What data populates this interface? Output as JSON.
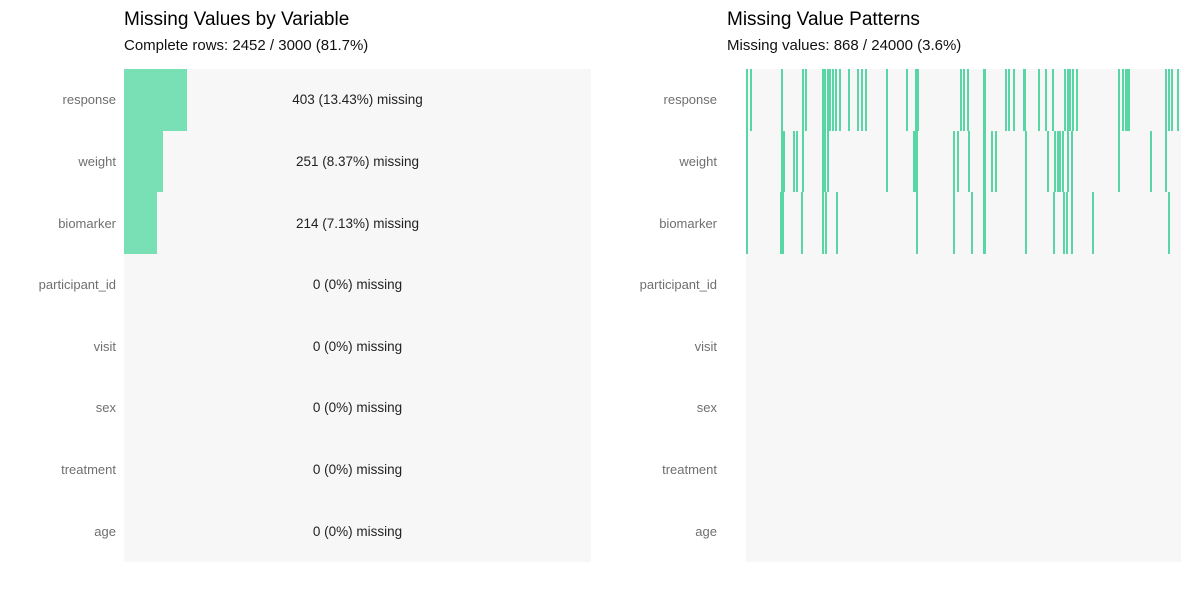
{
  "colors": {
    "bar": "#79dfb5",
    "tick": "#58d6a6",
    "plot_background": "#f7f7f7",
    "label_text": "#6f6f6f",
    "value_text": "#222222",
    "title_text": "#000000"
  },
  "chart_data": [
    {
      "type": "bar",
      "orientation": "horizontal",
      "title": "Missing Values by Variable",
      "subtitle": "Complete rows: 2452 / 3000 (81.7%)",
      "categories": [
        "response",
        "weight",
        "biomarker",
        "participant_id",
        "visit",
        "sex",
        "treatment",
        "age"
      ],
      "missing_counts": [
        403,
        251,
        214,
        0,
        0,
        0,
        0,
        0
      ],
      "missing_percent": [
        13.43,
        8.37,
        7.13,
        0,
        0,
        0,
        0,
        0
      ],
      "bar_labels": [
        "403 (13.43%) missing",
        "251 (8.37%) missing",
        "214 (7.13%) missing",
        "0 (0%) missing",
        "0 (0%) missing",
        "0 (0%) missing",
        "0 (0%) missing",
        "0 (0%) missing"
      ],
      "xlim": [
        0,
        100
      ],
      "grid": false,
      "legend": false
    },
    {
      "type": "heatmap",
      "title": "Missing Value Patterns",
      "subtitle": "Missing values: 868 / 24000 (3.6%)",
      "categories": [
        "response",
        "weight",
        "biomarker",
        "participant_id",
        "visit",
        "sex",
        "treatment",
        "age"
      ],
      "note_semantics": "vertical tick = missing cell; x position is fraction of observation index axis",
      "missing_positions": {
        "response": [
          0.0,
          0.009,
          0.08,
          0.129,
          0.136,
          0.175,
          0.179,
          0.186,
          0.191,
          0.198,
          0.205,
          0.214,
          0.234,
          0.255,
          0.264,
          0.274,
          0.322,
          0.368,
          0.389,
          0.393,
          0.492,
          0.499,
          0.508,
          0.545,
          0.595,
          0.602,
          0.614,
          0.637,
          0.671,
          0.687,
          0.703,
          0.731,
          0.738,
          0.743,
          0.749,
          0.759,
          0.855,
          0.864,
          0.871,
          0.878,
          0.963,
          0.97,
          0.977,
          0.991
        ],
        "weight": [
          0.0,
          0.08,
          0.085,
          0.108,
          0.115,
          0.129,
          0.175,
          0.179,
          0.186,
          0.322,
          0.384,
          0.391,
          0.476,
          0.485,
          0.51,
          0.545,
          0.563,
          0.572,
          0.641,
          0.692,
          0.708,
          0.715,
          0.72,
          0.726,
          0.738,
          0.747,
          0.855,
          0.929,
          0.963
        ],
        "biomarker": [
          0.0,
          0.078,
          0.083,
          0.126,
          0.175,
          0.182,
          0.207,
          0.391,
          0.476,
          0.517,
          0.545,
          0.641,
          0.706,
          0.729,
          0.736,
          0.747,
          0.795,
          0.97
        ],
        "participant_id": [],
        "visit": [],
        "sex": [],
        "treatment": [],
        "age": []
      },
      "wide_positions": {
        "response": [
          0.545,
          0.637,
          0.871
        ],
        "weight": [
          0.384,
          0.545
        ],
        "biomarker": [
          0.545
        ],
        "participant_id": [],
        "visit": [],
        "sex": [],
        "treatment": [],
        "age": []
      }
    }
  ]
}
